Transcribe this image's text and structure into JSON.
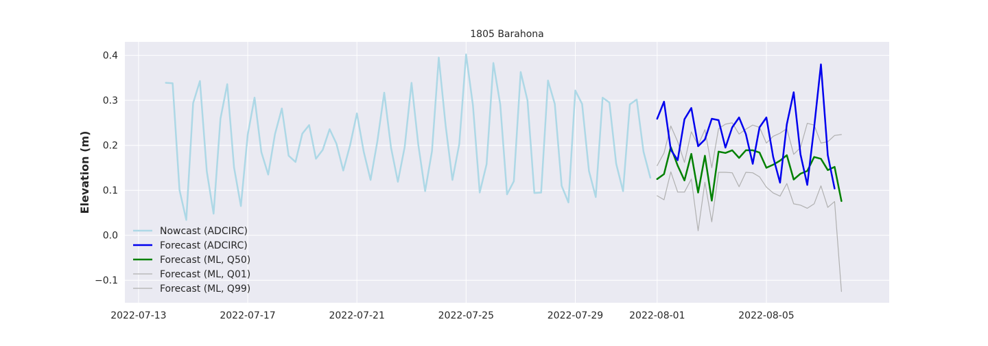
{
  "chart_data": {
    "type": "line",
    "title": "1805 Barahona",
    "xlabel": "",
    "ylabel": "Elevation (m)",
    "x_is_date": true,
    "xlim": [
      "2022-07-12 12:00",
      "2022-08-09 12:00"
    ],
    "ylim": [
      -0.15,
      0.43
    ],
    "x_ticks": [
      "2022-07-13",
      "2022-07-17",
      "2022-07-21",
      "2022-07-25",
      "2022-07-29",
      "2022-08-01",
      "2022-08-05"
    ],
    "y_ticks": [
      -0.1,
      0.0,
      0.1,
      0.2,
      0.3,
      0.4
    ],
    "y_tick_labels": [
      "−0.1",
      "0.0",
      "0.1",
      "0.2",
      "0.3",
      "0.4"
    ],
    "grid": true,
    "legend_position": "lower-left",
    "series": [
      {
        "name": "Nowcast (ADCIRC)",
        "color": "#add8e6",
        "width": 2.5,
        "x": [
          "2022-07-14 00:00",
          "2022-07-14 06:00",
          "2022-07-14 12:00",
          "2022-07-14 18:00",
          "2022-07-15 00:00",
          "2022-07-15 06:00",
          "2022-07-15 12:00",
          "2022-07-15 18:00",
          "2022-07-16 00:00",
          "2022-07-16 06:00",
          "2022-07-16 12:00",
          "2022-07-16 18:00",
          "2022-07-17 00:00",
          "2022-07-17 06:00",
          "2022-07-17 12:00",
          "2022-07-17 18:00",
          "2022-07-18 00:00",
          "2022-07-18 06:00",
          "2022-07-18 12:00",
          "2022-07-18 18:00",
          "2022-07-19 00:00",
          "2022-07-19 06:00",
          "2022-07-19 12:00",
          "2022-07-19 18:00",
          "2022-07-20 00:00",
          "2022-07-20 06:00",
          "2022-07-20 12:00",
          "2022-07-20 18:00",
          "2022-07-21 00:00",
          "2022-07-21 06:00",
          "2022-07-21 12:00",
          "2022-07-21 18:00",
          "2022-07-22 00:00",
          "2022-07-22 06:00",
          "2022-07-22 12:00",
          "2022-07-22 18:00",
          "2022-07-23 00:00",
          "2022-07-23 06:00",
          "2022-07-23 12:00",
          "2022-07-23 18:00",
          "2022-07-24 00:00",
          "2022-07-24 06:00",
          "2022-07-24 12:00",
          "2022-07-24 18:00",
          "2022-07-25 00:00",
          "2022-07-25 06:00",
          "2022-07-25 12:00",
          "2022-07-25 18:00",
          "2022-07-26 00:00",
          "2022-07-26 06:00",
          "2022-07-26 12:00",
          "2022-07-26 18:00",
          "2022-07-27 00:00",
          "2022-07-27 06:00",
          "2022-07-27 12:00",
          "2022-07-27 18:00",
          "2022-07-28 00:00",
          "2022-07-28 06:00",
          "2022-07-28 12:00",
          "2022-07-28 18:00",
          "2022-07-29 00:00",
          "2022-07-29 06:00",
          "2022-07-29 12:00",
          "2022-07-29 18:00",
          "2022-07-30 00:00",
          "2022-07-30 06:00",
          "2022-07-30 12:00",
          "2022-07-30 18:00",
          "2022-07-31 00:00",
          "2022-07-31 06:00",
          "2022-07-31 12:00",
          "2022-07-31 18:00"
        ],
        "values": [
          0.339,
          0.338,
          0.101,
          0.034,
          0.294,
          0.343,
          0.142,
          0.048,
          0.259,
          0.336,
          0.151,
          0.065,
          0.223,
          0.306,
          0.185,
          0.135,
          0.225,
          0.282,
          0.177,
          0.163,
          0.226,
          0.245,
          0.17,
          0.19,
          0.236,
          0.204,
          0.144,
          0.2,
          0.271,
          0.186,
          0.123,
          0.209,
          0.317,
          0.195,
          0.119,
          0.196,
          0.339,
          0.201,
          0.098,
          0.187,
          0.395,
          0.244,
          0.123,
          0.203,
          0.402,
          0.289,
          0.095,
          0.158,
          0.383,
          0.291,
          0.091,
          0.12,
          0.363,
          0.3,
          0.094,
          0.095,
          0.344,
          0.292,
          0.11,
          0.073,
          0.322,
          0.292,
          0.143,
          0.085,
          0.306,
          0.295,
          0.159,
          0.098,
          0.291,
          0.302,
          0.186,
          0.128
        ]
      },
      {
        "name": "Forecast (ADCIRC)",
        "color": "#0000ee",
        "width": 2.5,
        "x": [
          "2022-08-01 00:00",
          "2022-08-01 06:00",
          "2022-08-01 12:00",
          "2022-08-01 18:00",
          "2022-08-02 00:00",
          "2022-08-02 06:00",
          "2022-08-02 12:00",
          "2022-08-02 18:00",
          "2022-08-03 00:00",
          "2022-08-03 06:00",
          "2022-08-03 12:00",
          "2022-08-03 18:00",
          "2022-08-04 00:00",
          "2022-08-04 06:00",
          "2022-08-04 12:00",
          "2022-08-04 18:00",
          "2022-08-05 00:00",
          "2022-08-05 06:00",
          "2022-08-05 12:00",
          "2022-08-05 18:00",
          "2022-08-06 00:00",
          "2022-08-06 06:00",
          "2022-08-06 12:00",
          "2022-08-06 18:00",
          "2022-08-07 00:00",
          "2022-08-07 06:00",
          "2022-08-07 12:00"
        ],
        "values": [
          0.259,
          0.297,
          0.19,
          0.167,
          0.258,
          0.283,
          0.198,
          0.213,
          0.259,
          0.256,
          0.195,
          0.24,
          0.262,
          0.225,
          0.159,
          0.24,
          0.262,
          0.174,
          0.117,
          0.247,
          0.318,
          0.18,
          0.112,
          0.24,
          0.38,
          0.178,
          0.104
        ]
      },
      {
        "name": "Forecast (ML, Q50)",
        "color": "#008000",
        "width": 2.5,
        "x": [
          "2022-08-01 00:00",
          "2022-08-01 06:00",
          "2022-08-01 12:00",
          "2022-08-01 18:00",
          "2022-08-02 00:00",
          "2022-08-02 06:00",
          "2022-08-02 12:00",
          "2022-08-02 18:00",
          "2022-08-03 00:00",
          "2022-08-03 06:00",
          "2022-08-03 12:00",
          "2022-08-03 18:00",
          "2022-08-04 00:00",
          "2022-08-04 06:00",
          "2022-08-04 12:00",
          "2022-08-04 18:00",
          "2022-08-05 00:00",
          "2022-08-05 06:00",
          "2022-08-05 12:00",
          "2022-08-05 18:00",
          "2022-08-06 00:00",
          "2022-08-06 06:00",
          "2022-08-06 12:00",
          "2022-08-06 18:00",
          "2022-08-07 00:00",
          "2022-08-07 06:00",
          "2022-08-07 12:00",
          "2022-08-07 18:00"
        ],
        "values": [
          0.125,
          0.136,
          0.196,
          0.155,
          0.122,
          0.181,
          0.095,
          0.177,
          0.077,
          0.186,
          0.183,
          0.189,
          0.172,
          0.189,
          0.189,
          0.184,
          0.15,
          0.157,
          0.166,
          0.178,
          0.124,
          0.137,
          0.143,
          0.174,
          0.17,
          0.145,
          0.152,
          0.076
        ]
      },
      {
        "name": "Forecast (ML, Q01)",
        "color": "#b0b0b0",
        "width": 1.2,
        "x": [
          "2022-08-01 00:00",
          "2022-08-01 06:00",
          "2022-08-01 12:00",
          "2022-08-01 18:00",
          "2022-08-02 00:00",
          "2022-08-02 06:00",
          "2022-08-02 12:00",
          "2022-08-02 18:00",
          "2022-08-03 00:00",
          "2022-08-03 06:00",
          "2022-08-03 12:00",
          "2022-08-03 18:00",
          "2022-08-04 00:00",
          "2022-08-04 06:00",
          "2022-08-04 12:00",
          "2022-08-04 18:00",
          "2022-08-05 00:00",
          "2022-08-05 06:00",
          "2022-08-05 12:00",
          "2022-08-05 18:00",
          "2022-08-06 00:00",
          "2022-08-06 06:00",
          "2022-08-06 12:00",
          "2022-08-06 18:00",
          "2022-08-07 00:00",
          "2022-08-07 06:00",
          "2022-08-07 12:00",
          "2022-08-07 18:00"
        ],
        "values": [
          0.088,
          0.079,
          0.141,
          0.096,
          0.096,
          0.125,
          0.01,
          0.118,
          0.03,
          0.14,
          0.14,
          0.139,
          0.108,
          0.14,
          0.139,
          0.13,
          0.107,
          0.094,
          0.087,
          0.115,
          0.07,
          0.067,
          0.06,
          0.07,
          0.11,
          0.062,
          0.075,
          -0.125
        ]
      },
      {
        "name": "Forecast (ML, Q99)",
        "color": "#b0b0b0",
        "width": 1.2,
        "x": [
          "2022-08-01 00:00",
          "2022-08-01 06:00",
          "2022-08-01 12:00",
          "2022-08-01 18:00",
          "2022-08-02 00:00",
          "2022-08-02 06:00",
          "2022-08-02 12:00",
          "2022-08-02 18:00",
          "2022-08-03 00:00",
          "2022-08-03 06:00",
          "2022-08-03 12:00",
          "2022-08-03 18:00",
          "2022-08-04 00:00",
          "2022-08-04 06:00",
          "2022-08-04 12:00",
          "2022-08-04 18:00",
          "2022-08-05 00:00",
          "2022-08-05 06:00",
          "2022-08-05 12:00",
          "2022-08-05 18:00",
          "2022-08-06 00:00",
          "2022-08-06 06:00",
          "2022-08-06 12:00",
          "2022-08-06 18:00",
          "2022-08-07 00:00",
          "2022-08-07 06:00",
          "2022-08-07 12:00",
          "2022-08-07 18:00"
        ],
        "values": [
          0.155,
          0.183,
          0.243,
          0.208,
          0.162,
          0.23,
          0.2,
          0.235,
          0.15,
          0.237,
          0.247,
          0.25,
          0.225,
          0.236,
          0.245,
          0.24,
          0.205,
          0.22,
          0.227,
          0.237,
          0.18,
          0.195,
          0.249,
          0.245,
          0.205,
          0.208,
          0.222,
          0.224
        ]
      }
    ]
  }
}
